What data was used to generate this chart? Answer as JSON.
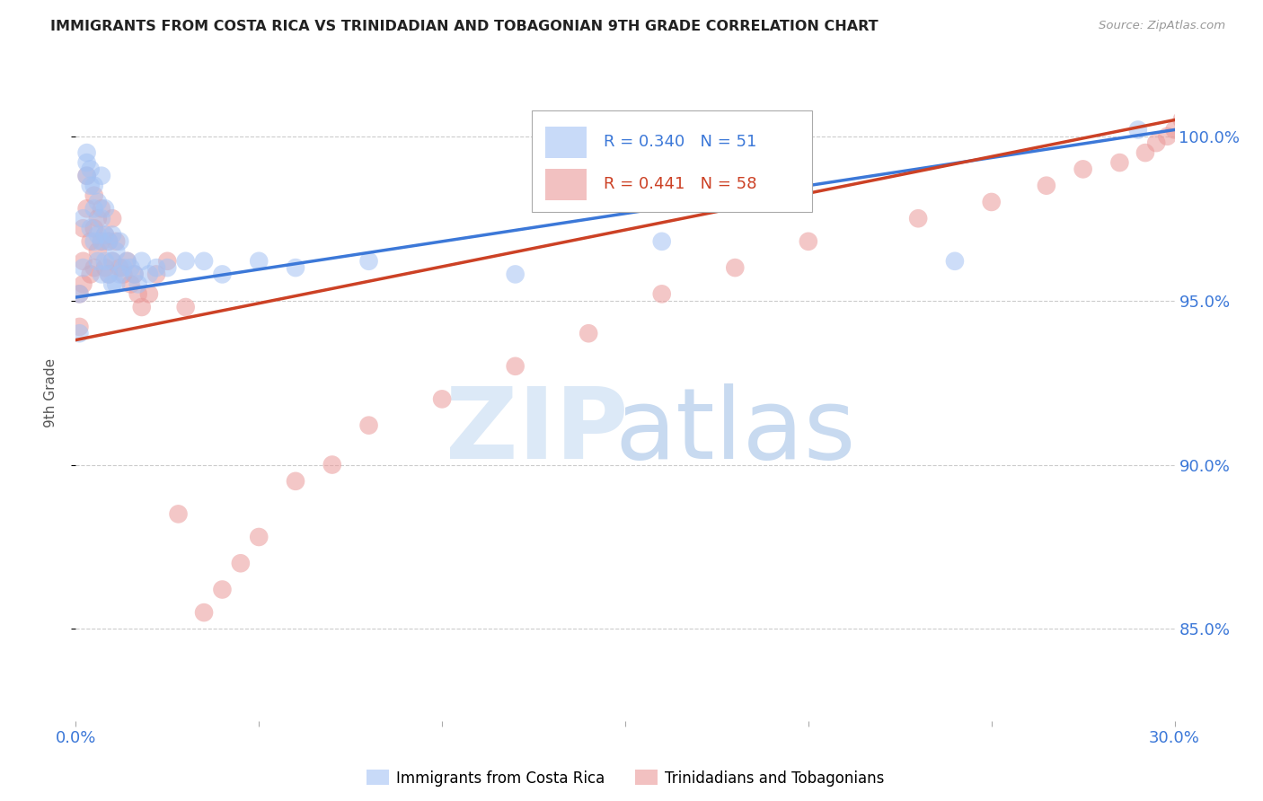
{
  "title": "IMMIGRANTS FROM COSTA RICA VS TRINIDADIAN AND TOBAGONIAN 9TH GRADE CORRELATION CHART",
  "source": "Source: ZipAtlas.com",
  "ylabel": "9th Grade",
  "ytick_values": [
    1.0,
    0.95,
    0.9,
    0.85
  ],
  "xmin": 0.0,
  "xmax": 0.3,
  "ymin": 0.822,
  "ymax": 1.022,
  "blue_R": 0.34,
  "blue_N": 51,
  "pink_R": 0.441,
  "pink_N": 58,
  "blue_color": "#a4c2f4",
  "pink_color": "#ea9999",
  "blue_line_color": "#3c78d8",
  "pink_line_color": "#cc4125",
  "legend_label_blue": "Immigrants from Costa Rica",
  "legend_label_pink": "Trinidadians and Tobagonians",
  "blue_scatter_x": [
    0.001,
    0.001,
    0.002,
    0.002,
    0.003,
    0.003,
    0.003,
    0.004,
    0.004,
    0.004,
    0.005,
    0.005,
    0.005,
    0.006,
    0.006,
    0.006,
    0.007,
    0.007,
    0.007,
    0.007,
    0.008,
    0.008,
    0.008,
    0.009,
    0.009,
    0.01,
    0.01,
    0.01,
    0.011,
    0.011,
    0.012,
    0.012,
    0.013,
    0.014,
    0.015,
    0.016,
    0.017,
    0.018,
    0.02,
    0.022,
    0.025,
    0.03,
    0.035,
    0.04,
    0.05,
    0.06,
    0.08,
    0.12,
    0.16,
    0.24,
    0.29
  ],
  "blue_scatter_y": [
    0.952,
    0.94,
    0.975,
    0.96,
    0.995,
    0.992,
    0.988,
    0.99,
    0.985,
    0.972,
    0.985,
    0.978,
    0.968,
    0.98,
    0.97,
    0.962,
    0.988,
    0.975,
    0.968,
    0.958,
    0.978,
    0.97,
    0.962,
    0.968,
    0.958,
    0.97,
    0.962,
    0.955,
    0.965,
    0.955,
    0.968,
    0.958,
    0.96,
    0.962,
    0.96,
    0.958,
    0.955,
    0.962,
    0.958,
    0.96,
    0.96,
    0.962,
    0.962,
    0.958,
    0.962,
    0.96,
    0.962,
    0.958,
    0.968,
    0.962,
    1.002
  ],
  "pink_scatter_x": [
    0.001,
    0.001,
    0.002,
    0.002,
    0.002,
    0.003,
    0.003,
    0.004,
    0.004,
    0.005,
    0.005,
    0.005,
    0.006,
    0.006,
    0.007,
    0.007,
    0.008,
    0.008,
    0.009,
    0.009,
    0.01,
    0.01,
    0.011,
    0.012,
    0.013,
    0.014,
    0.015,
    0.016,
    0.017,
    0.018,
    0.02,
    0.022,
    0.025,
    0.028,
    0.03,
    0.035,
    0.04,
    0.045,
    0.05,
    0.06,
    0.07,
    0.08,
    0.1,
    0.12,
    0.14,
    0.16,
    0.18,
    0.2,
    0.23,
    0.25,
    0.265,
    0.275,
    0.285,
    0.292,
    0.295,
    0.298,
    0.3,
    0.302
  ],
  "pink_scatter_y": [
    0.952,
    0.942,
    0.972,
    0.962,
    0.955,
    0.988,
    0.978,
    0.968,
    0.958,
    0.982,
    0.972,
    0.96,
    0.975,
    0.965,
    0.978,
    0.968,
    0.97,
    0.96,
    0.968,
    0.958,
    0.975,
    0.962,
    0.968,
    0.96,
    0.958,
    0.962,
    0.955,
    0.958,
    0.952,
    0.948,
    0.952,
    0.958,
    0.962,
    0.885,
    0.948,
    0.855,
    0.862,
    0.87,
    0.878,
    0.895,
    0.9,
    0.912,
    0.92,
    0.93,
    0.94,
    0.952,
    0.96,
    0.968,
    0.975,
    0.98,
    0.985,
    0.99,
    0.992,
    0.995,
    0.998,
    1.0,
    1.002,
    1.005
  ],
  "blue_line_x": [
    0.0,
    0.3
  ],
  "blue_line_y": [
    0.951,
    1.002
  ],
  "pink_line_x": [
    0.0,
    0.3
  ],
  "pink_line_y": [
    0.938,
    1.005
  ]
}
